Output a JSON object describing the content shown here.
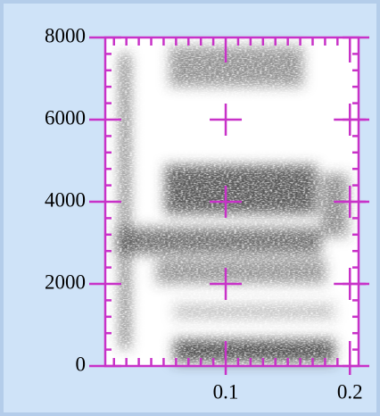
{
  "chart_data": {
    "type": "spectrogram",
    "xlim": [
      0.003,
      0.207
    ],
    "xticks": [
      0.1,
      0.2
    ],
    "xminorticks": [
      0.01,
      0.02,
      0.03,
      0.04,
      0.05,
      0.06,
      0.07,
      0.08,
      0.09,
      0.11,
      0.12,
      0.13,
      0.14,
      0.15,
      0.16,
      0.17,
      0.18,
      0.19
    ],
    "ylim": [
      0,
      8000
    ],
    "yticks": [
      0,
      2000,
      4000,
      6000,
      8000
    ],
    "yminorticks": [
      400,
      800,
      1200,
      1600,
      2400,
      2800,
      3200,
      3600,
      4400,
      4800,
      5200,
      5600,
      6400,
      6800,
      7200,
      7600
    ],
    "grid": "crosses",
    "color": "#c832c8"
  }
}
